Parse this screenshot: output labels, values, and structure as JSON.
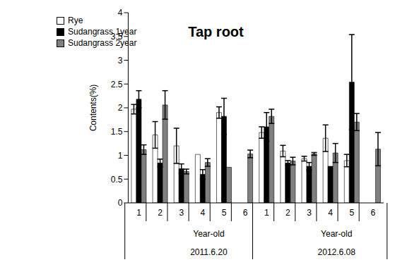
{
  "chart_data": {
    "type": "bar",
    "title": "Tap root",
    "y_label": "Contents(%)",
    "categories": [
      "1",
      "2",
      "3",
      "4",
      "5",
      "6",
      "1",
      "2",
      "3",
      "4",
      "5",
      "6"
    ],
    "groups": [
      {
        "label": "Year-old",
        "date": "2011.6.20"
      },
      {
        "label": "Year-old",
        "date": "2012.6.08"
      }
    ],
    "series": [
      {
        "name": "Rye",
        "color": "#ffffff",
        "values": [
          1.97,
          1.43,
          1.2,
          1.02,
          1.9,
          null,
          1.48,
          1.09,
          0.93,
          1.36,
          0.89,
          null
        ],
        "errors": [
          0.1,
          0.28,
          0.37,
          0,
          0.12,
          null,
          0.12,
          0.12,
          0.05,
          0.28,
          0.13,
          null
        ]
      },
      {
        "name": "Sudangrass 1year",
        "color": "#000000",
        "values": [
          2.18,
          0.84,
          0.72,
          0.6,
          1.82,
          null,
          1.6,
          0.84,
          0.77,
          0.77,
          2.54,
          null
        ],
        "errors": [
          0.18,
          0.08,
          0.1,
          0.1,
          0.38,
          null,
          0.3,
          0.05,
          0.08,
          0,
          1.0,
          null
        ]
      },
      {
        "name": "Sudangrass 2year",
        "color": "#808080",
        "values": [
          1.12,
          2.06,
          0.66,
          0.85,
          0.75,
          1.03,
          1.82,
          0.88,
          1.03,
          1.05,
          1.7,
          1.13
        ],
        "errors": [
          0.1,
          0.3,
          0.05,
          0.08,
          0,
          0.08,
          0.15,
          0.08,
          0.03,
          0.2,
          0.18,
          0.35
        ]
      }
    ],
    "ylim": [
      0,
      4
    ],
    "yticks": [
      0,
      0.5,
      1,
      1.5,
      2,
      2.5,
      3,
      3.5,
      4
    ],
    "legend": "upper left",
    "grid": false
  }
}
